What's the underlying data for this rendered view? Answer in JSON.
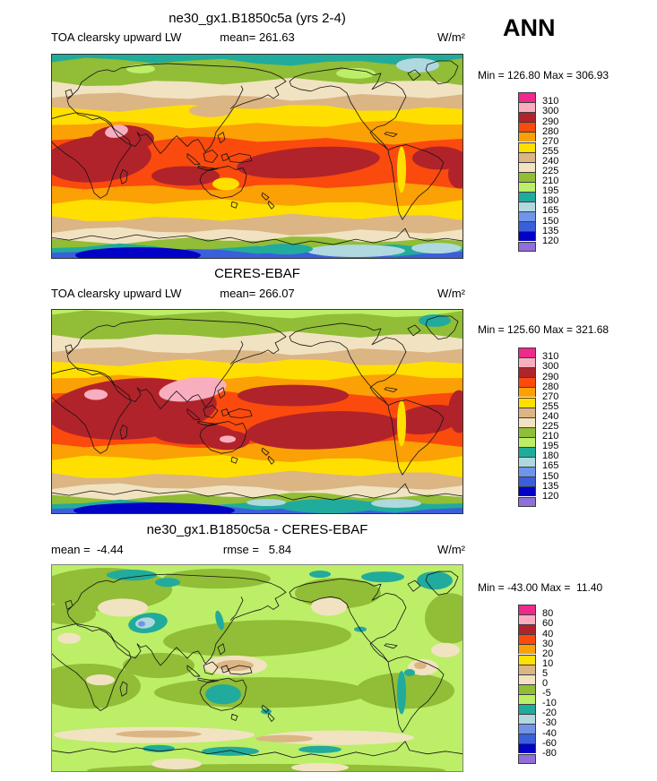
{
  "figure": {
    "background": "#ffffff",
    "season": "ANN",
    "units": "W/m²"
  },
  "palette": [
    "#EE2A8B",
    "#F9AEBF",
    "#B1232A",
    "#FB4A0D",
    "#FBA005",
    "#FFDF00",
    "#DBB584",
    "#F1E3C1",
    "#91BD37",
    "#BCEE68",
    "#21AB9C",
    "#AFD8DF",
    "#6F94E8",
    "#3A5FDB",
    "#0202C6",
    "#8F6FD8"
  ],
  "chart_data": [
    {
      "type": "heatmap",
      "projection": "global-map",
      "title": "ne30_gx1.B1850c5a (yrs 2-4)",
      "variable": "TOA clearsky upward LW",
      "season": "ANN",
      "units": "W/m²",
      "mean": 261.63,
      "min": 126.8,
      "max": 306.93,
      "mean_label": "mean= 261.63",
      "minmax_label": "Min = 126.80 Max = 306.93",
      "levels": [
        "310",
        "300",
        "290",
        "280",
        "270",
        "255",
        "240",
        "225",
        "210",
        "195",
        "180",
        "165",
        "150",
        "135",
        "120"
      ],
      "legend_position": "right"
    },
    {
      "type": "heatmap",
      "projection": "global-map",
      "title": "CERES-EBAF",
      "variable": "TOA clearsky upward LW",
      "season": "ANN",
      "units": "W/m²",
      "mean": 266.07,
      "min": 125.6,
      "max": 321.68,
      "mean_label": "mean= 266.07",
      "minmax_label": "Min = 125.60 Max = 321.68",
      "levels": [
        "310",
        "300",
        "290",
        "280",
        "270",
        "255",
        "240",
        "225",
        "210",
        "195",
        "180",
        "165",
        "150",
        "135",
        "120"
      ],
      "legend_position": "right"
    },
    {
      "type": "heatmap",
      "projection": "global-map",
      "title": "ne30_gx1.B1850c5a - CERES-EBAF",
      "variable": "difference",
      "season": "ANN",
      "units": "W/m²",
      "mean": -4.44,
      "rmse": 5.84,
      "min": -43.0,
      "max": 11.4,
      "mean_label": "mean =  -4.44",
      "rmse_label": "rmse =   5.84",
      "minmax_label": "Min = -43.00 Max =  11.40",
      "levels": [
        "80",
        "60",
        "40",
        "30",
        "20",
        "10",
        "5",
        "0",
        "-5",
        "-10",
        "-20",
        "-30",
        "-40",
        "-60",
        "-80"
      ],
      "legend_position": "right"
    }
  ]
}
